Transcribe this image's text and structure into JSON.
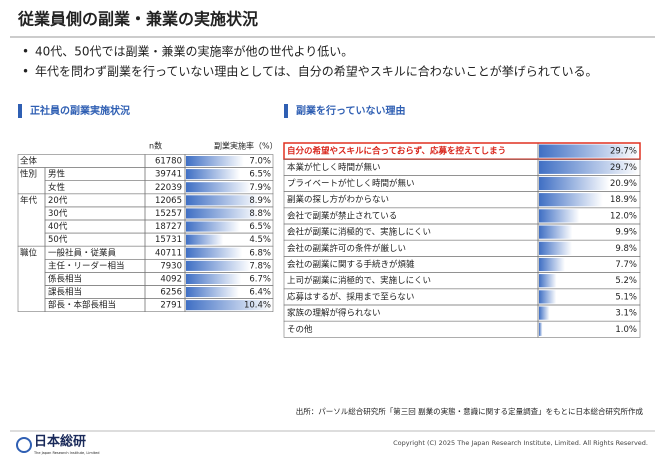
{
  "header": {
    "title": "従業員側の副業・兼業の実施状況"
  },
  "bullets": [
    "40代、50代では副業・兼業の実施率が他の世代より低い。",
    "年代を問わず副業を行っていない理由としては、自分の希望やスキルに合わないことが挙げられている。"
  ],
  "left": {
    "title": "正社員の副業実施状況",
    "columns": [
      "n数",
      "副業実施率（%）"
    ],
    "groups": [
      {
        "label": "全体",
        "rows": [
          {
            "n": 61780,
            "rate": {
              "value": 7.0,
              "label": "7.0%"
            }
          }
        ]
      },
      {
        "label": "性別",
        "rows": [
          {
            "label": "男性",
            "n": 39741,
            "rate": {
              "value": 6.5,
              "label": "6.5%"
            }
          },
          {
            "label": "女性",
            "n": 22039,
            "rate": {
              "value": 7.9,
              "label": "7.9%"
            }
          }
        ]
      },
      {
        "label": "年代",
        "rows": [
          {
            "label": "20代",
            "n": 12065,
            "rate": {
              "value": 8.9,
              "label": "8.9%"
            }
          },
          {
            "label": "30代",
            "n": 15257,
            "rate": {
              "value": 8.8,
              "label": "8.8%"
            }
          },
          {
            "label": "40代",
            "n": 18727,
            "rate": {
              "value": 6.5,
              "label": "6.5%"
            }
          },
          {
            "label": "50代",
            "n": 15731,
            "rate": {
              "value": 4.5,
              "label": "4.5%"
            }
          }
        ]
      },
      {
        "label": "職位",
        "rows": [
          {
            "label": "一般社員・従業員",
            "n": 40711,
            "rate": {
              "value": 6.8,
              "label": "6.8%"
            }
          },
          {
            "label": "主任・リーダー相当",
            "n": 7930,
            "rate": {
              "value": 7.8,
              "label": "7.8%"
            }
          },
          {
            "label": "係長相当",
            "n": 4092,
            "rate": {
              "value": 6.7,
              "label": "6.7%"
            }
          },
          {
            "label": "課長相当",
            "n": 6256,
            "rate": {
              "value": 6.4,
              "label": "6.4%"
            }
          },
          {
            "label": "部長・本部長相当",
            "n": 2791,
            "rate": {
              "value": 10.4,
              "label": "10.4%"
            }
          }
        ]
      }
    ]
  },
  "right": {
    "title": "副業を行っていない理由",
    "rows": [
      {
        "label": "自分の希望やスキルに合っておらず、応募を控えてしまう",
        "rate": {
          "value": 29.7,
          "label": "29.7%"
        },
        "highlighted": true
      },
      {
        "label": "本業が忙しく時間が無い",
        "rate": {
          "value": 29.7,
          "label": "29.7%"
        }
      },
      {
        "label": "プライベートが忙しく時間が無い",
        "rate": {
          "value": 20.9,
          "label": "20.9%"
        }
      },
      {
        "label": "副業の探し方がわからない",
        "rate": {
          "value": 18.9,
          "label": "18.9%"
        }
      },
      {
        "label": "会社で副業が禁止されている",
        "rate": {
          "value": 12.0,
          "label": "12.0%"
        }
      },
      {
        "label": "会社が副業に消極的で、実施しにくい",
        "rate": {
          "value": 9.9,
          "label": "9.9%"
        }
      },
      {
        "label": "会社の副業許可の条件が厳しい",
        "rate": {
          "value": 9.8,
          "label": "9.8%"
        }
      },
      {
        "label": "会社の副業に関する手続きが煩雑",
        "rate": {
          "value": 7.7,
          "label": "7.7%"
        }
      },
      {
        "label": "上司が副業に消極的で、実施しにくい",
        "rate": {
          "value": 5.2,
          "label": "5.2%"
        }
      },
      {
        "label": "応募はするが、採用まで至らない",
        "rate": {
          "value": 5.1,
          "label": "5.1%"
        }
      },
      {
        "label": "家族の理解が得られない",
        "rate": {
          "value": 3.1,
          "label": "3.1%"
        }
      },
      {
        "label": "その他",
        "rate": {
          "value": 1.0,
          "label": "1.0%"
        }
      }
    ]
  },
  "source": "出所：パーソル総合研究所「第三回 副業の実態・意識に関する定量調査」をもとに日本総合研究所作成",
  "footer": {
    "logo": "日本総研",
    "logo_sub": "The Japan Research Institute, Limited",
    "copyright": "Copyright (C) 2025 The Japan Research Institute, Limited. All Rights Reserved."
  }
}
